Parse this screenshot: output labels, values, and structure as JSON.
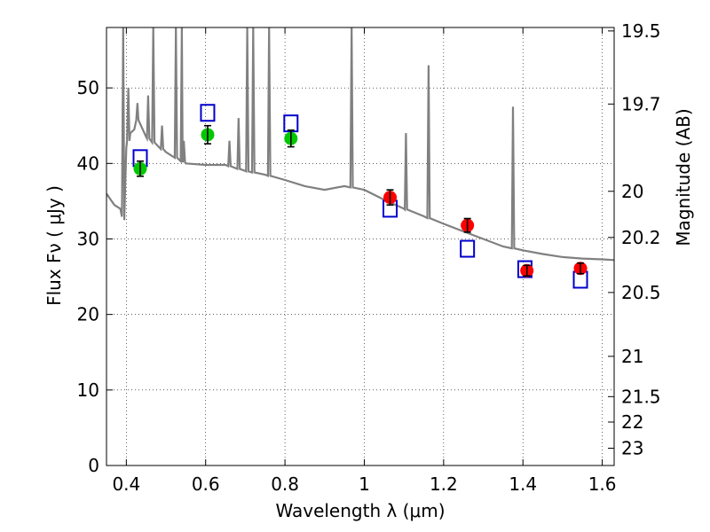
{
  "chart_data": {
    "type": "scatter",
    "xlabel": "Wavelength  λ (μm)",
    "ylabel": "Flux  Fν  ( μJy )",
    "y2label": "Magnitude (AB)",
    "xlim": [
      0.35,
      1.63
    ],
    "ylim": [
      0,
      58
    ],
    "grid": true,
    "x_ticks": [
      0.4,
      0.6,
      0.8,
      1.0,
      1.2,
      1.4,
      1.6
    ],
    "x_tick_labels": [
      "0.4",
      "0.6",
      "0.8",
      "1",
      "1.2",
      "1.4",
      "1.6"
    ],
    "y_ticks": [
      0,
      10,
      20,
      30,
      40,
      50
    ],
    "y_tick_labels": [
      "0",
      "10",
      "20",
      "30",
      "40",
      "50"
    ],
    "mag_ticks": [
      "19.5",
      "19.7",
      "20",
      "20.2",
      "20.5",
      "21",
      "21.5",
      "22",
      "23"
    ],
    "series": [
      {
        "marker": "circle",
        "color": "#00c800",
        "x": [
          0.435,
          0.605,
          0.815
        ],
        "y": [
          39.3,
          43.8,
          43.3
        ],
        "yerr": [
          1.0,
          1.2,
          1.1
        ]
      },
      {
        "marker": "circle",
        "color": "#ff0000",
        "x": [
          1.065,
          1.26,
          1.41,
          1.545
        ],
        "y": [
          35.5,
          31.8,
          25.8,
          26.1
        ],
        "yerr": [
          1.0,
          0.9,
          0.7,
          0.7
        ]
      },
      {
        "marker": "open-square",
        "color": "#0000cc",
        "x": [
          0.435,
          0.605,
          0.815,
          1.065,
          1.26,
          1.405,
          1.545
        ],
        "y": [
          40.7,
          46.7,
          45.3,
          34.0,
          28.7,
          26.0,
          24.6
        ]
      },
      {
        "marker": "line",
        "color": "#808080",
        "x": [
          0.35,
          0.37,
          0.385,
          0.395,
          0.4,
          0.41,
          0.42,
          0.43,
          0.45,
          0.5,
          0.55,
          0.6,
          0.65,
          0.7,
          0.75,
          0.8,
          0.85,
          0.9,
          0.95,
          1.0,
          1.05,
          1.1,
          1.15,
          1.2,
          1.25,
          1.3,
          1.35,
          1.4,
          1.45,
          1.5,
          1.55,
          1.6,
          1.63
        ],
        "y": [
          36.0,
          34.5,
          34.0,
          32.5,
          42.0,
          44.0,
          44.5,
          46.0,
          43.5,
          41.5,
          40.0,
          39.8,
          39.8,
          39.0,
          38.5,
          37.8,
          37.0,
          36.5,
          37.0,
          36.5,
          35.2,
          34.0,
          33.0,
          32.0,
          31.0,
          30.0,
          29.0,
          28.5,
          28.0,
          27.6,
          27.4,
          27.3,
          27.2
        ]
      }
    ],
    "emission_lines": [
      {
        "x": 0.392,
        "peak": 58
      },
      {
        "x": 0.405,
        "peak": 50
      },
      {
        "x": 0.428,
        "peak": 48
      },
      {
        "x": 0.455,
        "peak": 49
      },
      {
        "x": 0.468,
        "peak": 58
      },
      {
        "x": 0.49,
        "peak": 45
      },
      {
        "x": 0.525,
        "peak": 58
      },
      {
        "x": 0.54,
        "peak": 58
      },
      {
        "x": 0.545,
        "peak": 43
      },
      {
        "x": 0.66,
        "peak": 43
      },
      {
        "x": 0.683,
        "peak": 46
      },
      {
        "x": 0.705,
        "peak": 58
      },
      {
        "x": 0.72,
        "peak": 58
      },
      {
        "x": 0.76,
        "peak": 58
      },
      {
        "x": 0.968,
        "peak": 58
      },
      {
        "x": 1.105,
        "peak": 44
      },
      {
        "x": 1.162,
        "peak": 53
      },
      {
        "x": 1.375,
        "peak": 47.5
      }
    ]
  }
}
